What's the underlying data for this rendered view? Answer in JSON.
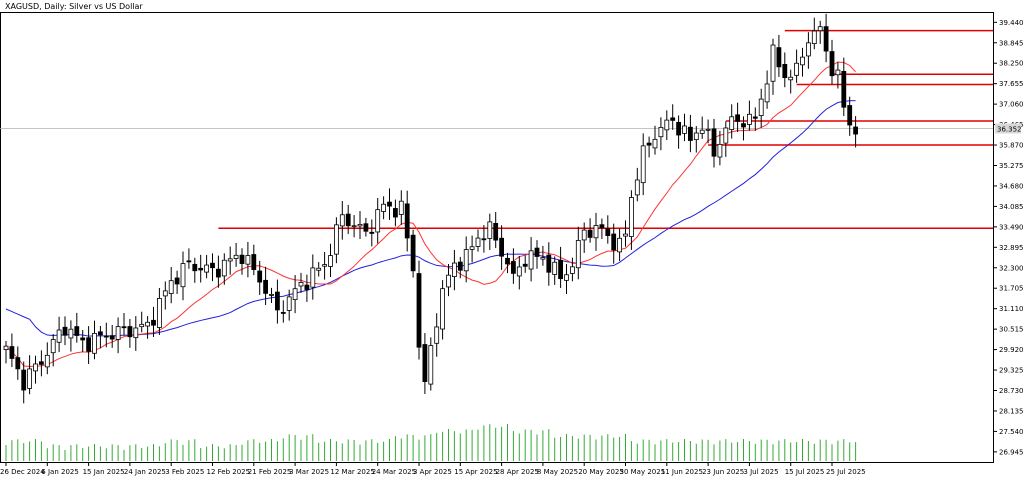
{
  "title": "XAGUSD, Daily:  Silver vs US Dollar",
  "chart_data": {
    "type": "candlestick",
    "symbol": "XAGUSD",
    "timeframe": "Daily",
    "ylim": [
      26.65,
      39.74
    ],
    "y_ticks": [
      "39.440",
      "38.845",
      "38.250",
      "37.655",
      "37.060",
      "36.465",
      "35.870",
      "35.275",
      "34.680",
      "34.085",
      "33.490",
      "32.895",
      "32.300",
      "31.705",
      "31.110",
      "30.515",
      "29.920",
      "29.325",
      "28.730",
      "28.135",
      "27.540",
      "26.945"
    ],
    "x_ticks": [
      {
        "i": 0,
        "label": "26 Dec 2024"
      },
      {
        "i": 7,
        "label": "6 Jan 2025"
      },
      {
        "i": 14,
        "label": "15 Jan 2025"
      },
      {
        "i": 21,
        "label": "24 Jan 2025"
      },
      {
        "i": 28,
        "label": "3 Feb 2025"
      },
      {
        "i": 35,
        "label": "12 Feb 2025"
      },
      {
        "i": 42,
        "label": "21 Feb 2025"
      },
      {
        "i": 49,
        "label": "3 Mar 2025"
      },
      {
        "i": 56,
        "label": "12 Mar 2025"
      },
      {
        "i": 63,
        "label": "24 Mar 2025"
      },
      {
        "i": 70,
        "label": "3 Apr 2025"
      },
      {
        "i": 77,
        "label": "15 Apr 2025"
      },
      {
        "i": 84,
        "label": "28 Apr 2025"
      },
      {
        "i": 91,
        "label": "8 May 2025"
      },
      {
        "i": 98,
        "label": "20 May 2025"
      },
      {
        "i": 105,
        "label": "30 May 2025"
      },
      {
        "i": 112,
        "label": "11 Jun 2025"
      },
      {
        "i": 119,
        "label": "23 Jun 2025"
      },
      {
        "i": 126,
        "label": "3 Jul 2025"
      },
      {
        "i": 133,
        "label": "15 Jul 2025"
      },
      {
        "i": 140,
        "label": "25 Jul 2025"
      }
    ],
    "current_price_label": "36.352",
    "series": [
      {
        "name": "",
        "color": "#ff3333",
        "kind": "ma_fast"
      },
      {
        "name": "",
        "color": "#2222dd",
        "kind": "ma_slow"
      }
    ],
    "horizontal_levels": [
      {
        "price": 39.2,
        "from_i": 132,
        "color": "#e00000"
      },
      {
        "price": 37.93,
        "from_i": 140,
        "color": "#e00000"
      },
      {
        "price": 37.63,
        "from_i": 134,
        "color": "#e00000"
      },
      {
        "price": 36.57,
        "from_i": 122,
        "color": "#e00000"
      },
      {
        "price": 35.87,
        "from_i": 119,
        "color": "#e00000"
      },
      {
        "price": 33.45,
        "from_i": 36,
        "color": "#e00000"
      }
    ],
    "anchors": [
      [
        0,
        29.9
      ],
      [
        3,
        29.0
      ],
      [
        6,
        29.6
      ],
      [
        10,
        30.6
      ],
      [
        13,
        30.1
      ],
      [
        18,
        30.4
      ],
      [
        24,
        30.6
      ],
      [
        28,
        31.9
      ],
      [
        31,
        32.4
      ],
      [
        35,
        32.2
      ],
      [
        40,
        32.7
      ],
      [
        44,
        31.7
      ],
      [
        46,
        31.0
      ],
      [
        50,
        31.8
      ],
      [
        54,
        32.4
      ],
      [
        57,
        33.8
      ],
      [
        61,
        33.3
      ],
      [
        64,
        34.1
      ],
      [
        67,
        34.0
      ],
      [
        69,
        32.3
      ],
      [
        70,
        30.1
      ],
      [
        71,
        28.8
      ],
      [
        72,
        30.0
      ],
      [
        74,
        31.6
      ],
      [
        76,
        32.4
      ],
      [
        78,
        32.6
      ],
      [
        80,
        33.2
      ],
      [
        82,
        33.4
      ],
      [
        84,
        32.8
      ],
      [
        86,
        32.0
      ],
      [
        88,
        32.6
      ],
      [
        91,
        32.6
      ],
      [
        94,
        32.0
      ],
      [
        96,
        32.4
      ],
      [
        98,
        33.4
      ],
      [
        101,
        33.4
      ],
      [
        104,
        32.9
      ],
      [
        105,
        33.3
      ],
      [
        106,
        34.4
      ],
      [
        108,
        35.6
      ],
      [
        110,
        36.2
      ],
      [
        113,
        36.6
      ],
      [
        116,
        36.0
      ],
      [
        118,
        36.5
      ],
      [
        120,
        35.6
      ],
      [
        122,
        36.4
      ],
      [
        124,
        36.6
      ],
      [
        127,
        36.6
      ],
      [
        130,
        38.5
      ],
      [
        132,
        37.9
      ],
      [
        134,
        38.0
      ],
      [
        136,
        39.0
      ],
      [
        138,
        39.2
      ],
      [
        140,
        38.1
      ],
      [
        141,
        37.8
      ],
      [
        142,
        37.0
      ],
      [
        143,
        36.5
      ],
      [
        144,
        36.35
      ]
    ],
    "volume_profile": [
      2,
      1,
      1,
      1,
      2,
      1,
      2,
      3,
      2,
      2,
      3,
      4,
      5,
      4,
      3,
      3,
      2,
      2,
      2,
      2,
      2,
      2
    ]
  }
}
